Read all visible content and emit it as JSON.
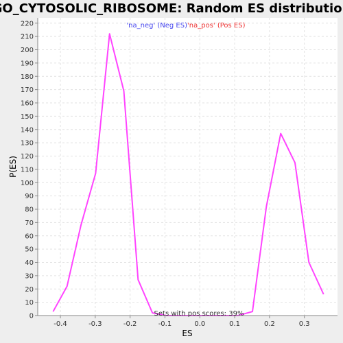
{
  "chart_data": {
    "type": "line",
    "title": "GO_CYTOSOLIC_RIBOSOME: Random ES distribution",
    "xlabel": "ES",
    "ylabel": "P(ES)",
    "xlim": [
      -0.465,
      0.395
    ],
    "ylim": [
      0,
      224
    ],
    "x_ticks": [
      -0.4,
      -0.3,
      -0.2,
      -0.1,
      0.0,
      0.1,
      0.2,
      0.3
    ],
    "x_tick_labels": [
      "-0.4",
      "-0.3",
      "-0.2",
      "-0.1",
      "0.0",
      "0.1",
      "0.2",
      "0.3"
    ],
    "y_ticks": [
      0,
      10,
      20,
      30,
      40,
      50,
      60,
      70,
      80,
      90,
      100,
      110,
      120,
      130,
      140,
      150,
      160,
      170,
      180,
      190,
      200,
      210,
      220
    ],
    "grid": true,
    "legend_position": "top",
    "series": [
      {
        "name": "'na_neg' (Neg ES)",
        "color": "#4444ee",
        "x": [],
        "y": []
      },
      {
        "name": "'na_pos' (Pos ES)",
        "color": "#ee3333",
        "x": [],
        "y": []
      },
      {
        "color": "#ff44ff",
        "x": [
          -0.421,
          -0.381,
          -0.341,
          -0.299,
          -0.259,
          -0.218,
          -0.177,
          -0.136,
          -0.096,
          0.109,
          0.151,
          0.191,
          0.232,
          0.273,
          0.313,
          0.355
        ],
        "y": [
          3,
          22,
          68,
          107,
          212,
          169,
          27,
          2,
          0,
          0,
          3,
          82,
          137,
          115,
          40,
          16
        ]
      }
    ],
    "annotation": "Sets with pos scores: 39%"
  }
}
